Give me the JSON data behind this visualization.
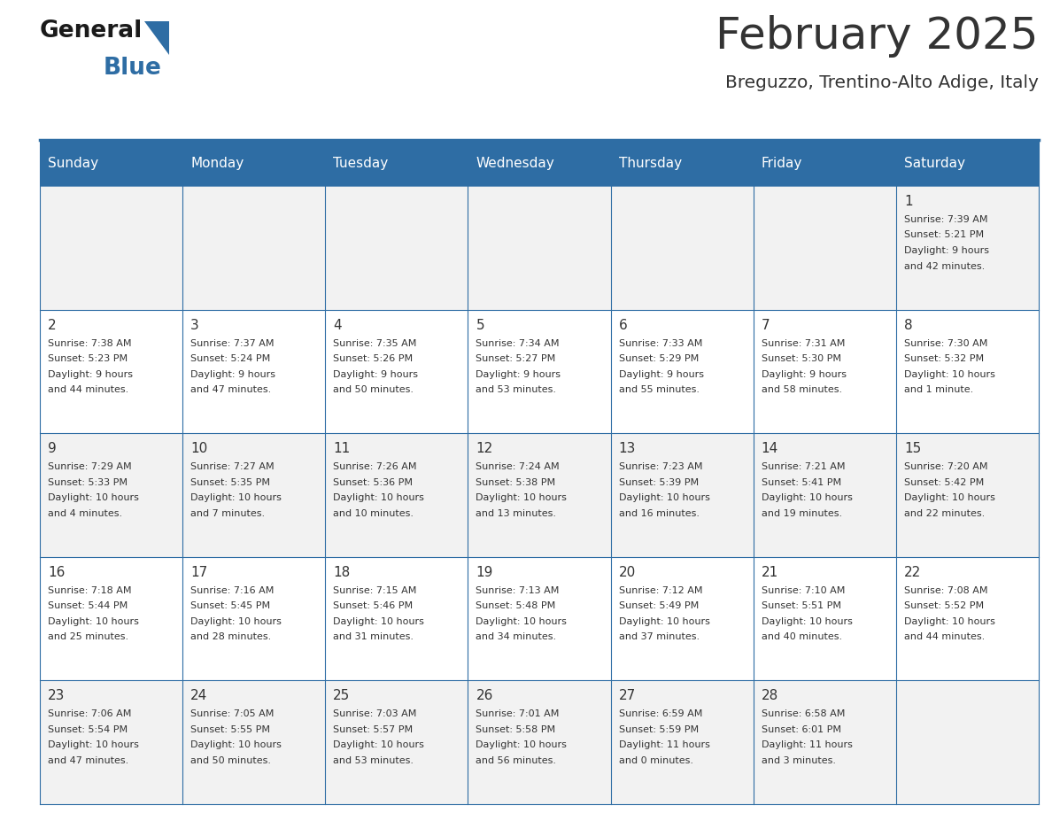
{
  "title": "February 2025",
  "subtitle": "Breguzzo, Trentino-Alto Adige, Italy",
  "days_of_week": [
    "Sunday",
    "Monday",
    "Tuesday",
    "Wednesday",
    "Thursday",
    "Friday",
    "Saturday"
  ],
  "header_bg": "#2E6DA4",
  "header_text": "#FFFFFF",
  "cell_bg_odd": "#F2F2F2",
  "cell_bg_even": "#FFFFFF",
  "border_color": "#2E6DA4",
  "text_color": "#333333",
  "logo_general_color": "#1a1a1a",
  "logo_blue_color": "#2E6DA4",
  "calendar_data": [
    [
      null,
      null,
      null,
      null,
      null,
      null,
      {
        "day": 1,
        "sunrise": "7:39 AM",
        "sunset": "5:21 PM",
        "daylight": "9 hours",
        "daylight2": "and 42 minutes."
      }
    ],
    [
      {
        "day": 2,
        "sunrise": "7:38 AM",
        "sunset": "5:23 PM",
        "daylight": "9 hours",
        "daylight2": "and 44 minutes."
      },
      {
        "day": 3,
        "sunrise": "7:37 AM",
        "sunset": "5:24 PM",
        "daylight": "9 hours",
        "daylight2": "and 47 minutes."
      },
      {
        "day": 4,
        "sunrise": "7:35 AM",
        "sunset": "5:26 PM",
        "daylight": "9 hours",
        "daylight2": "and 50 minutes."
      },
      {
        "day": 5,
        "sunrise": "7:34 AM",
        "sunset": "5:27 PM",
        "daylight": "9 hours",
        "daylight2": "and 53 minutes."
      },
      {
        "day": 6,
        "sunrise": "7:33 AM",
        "sunset": "5:29 PM",
        "daylight": "9 hours",
        "daylight2": "and 55 minutes."
      },
      {
        "day": 7,
        "sunrise": "7:31 AM",
        "sunset": "5:30 PM",
        "daylight": "9 hours",
        "daylight2": "and 58 minutes."
      },
      {
        "day": 8,
        "sunrise": "7:30 AM",
        "sunset": "5:32 PM",
        "daylight": "10 hours",
        "daylight2": "and 1 minute."
      }
    ],
    [
      {
        "day": 9,
        "sunrise": "7:29 AM",
        "sunset": "5:33 PM",
        "daylight": "10 hours",
        "daylight2": "and 4 minutes."
      },
      {
        "day": 10,
        "sunrise": "7:27 AM",
        "sunset": "5:35 PM",
        "daylight": "10 hours",
        "daylight2": "and 7 minutes."
      },
      {
        "day": 11,
        "sunrise": "7:26 AM",
        "sunset": "5:36 PM",
        "daylight": "10 hours",
        "daylight2": "and 10 minutes."
      },
      {
        "day": 12,
        "sunrise": "7:24 AM",
        "sunset": "5:38 PM",
        "daylight": "10 hours",
        "daylight2": "and 13 minutes."
      },
      {
        "day": 13,
        "sunrise": "7:23 AM",
        "sunset": "5:39 PM",
        "daylight": "10 hours",
        "daylight2": "and 16 minutes."
      },
      {
        "day": 14,
        "sunrise": "7:21 AM",
        "sunset": "5:41 PM",
        "daylight": "10 hours",
        "daylight2": "and 19 minutes."
      },
      {
        "day": 15,
        "sunrise": "7:20 AM",
        "sunset": "5:42 PM",
        "daylight": "10 hours",
        "daylight2": "and 22 minutes."
      }
    ],
    [
      {
        "day": 16,
        "sunrise": "7:18 AM",
        "sunset": "5:44 PM",
        "daylight": "10 hours",
        "daylight2": "and 25 minutes."
      },
      {
        "day": 17,
        "sunrise": "7:16 AM",
        "sunset": "5:45 PM",
        "daylight": "10 hours",
        "daylight2": "and 28 minutes."
      },
      {
        "day": 18,
        "sunrise": "7:15 AM",
        "sunset": "5:46 PM",
        "daylight": "10 hours",
        "daylight2": "and 31 minutes."
      },
      {
        "day": 19,
        "sunrise": "7:13 AM",
        "sunset": "5:48 PM",
        "daylight": "10 hours",
        "daylight2": "and 34 minutes."
      },
      {
        "day": 20,
        "sunrise": "7:12 AM",
        "sunset": "5:49 PM",
        "daylight": "10 hours",
        "daylight2": "and 37 minutes."
      },
      {
        "day": 21,
        "sunrise": "7:10 AM",
        "sunset": "5:51 PM",
        "daylight": "10 hours",
        "daylight2": "and 40 minutes."
      },
      {
        "day": 22,
        "sunrise": "7:08 AM",
        "sunset": "5:52 PM",
        "daylight": "10 hours",
        "daylight2": "and 44 minutes."
      }
    ],
    [
      {
        "day": 23,
        "sunrise": "7:06 AM",
        "sunset": "5:54 PM",
        "daylight": "10 hours",
        "daylight2": "and 47 minutes."
      },
      {
        "day": 24,
        "sunrise": "7:05 AM",
        "sunset": "5:55 PM",
        "daylight": "10 hours",
        "daylight2": "and 50 minutes."
      },
      {
        "day": 25,
        "sunrise": "7:03 AM",
        "sunset": "5:57 PM",
        "daylight": "10 hours",
        "daylight2": "and 53 minutes."
      },
      {
        "day": 26,
        "sunrise": "7:01 AM",
        "sunset": "5:58 PM",
        "daylight": "10 hours",
        "daylight2": "and 56 minutes."
      },
      {
        "day": 27,
        "sunrise": "6:59 AM",
        "sunset": "5:59 PM",
        "daylight": "11 hours",
        "daylight2": "and 0 minutes."
      },
      {
        "day": 28,
        "sunrise": "6:58 AM",
        "sunset": "6:01 PM",
        "daylight": "11 hours",
        "daylight2": "and 3 minutes."
      },
      null
    ]
  ]
}
